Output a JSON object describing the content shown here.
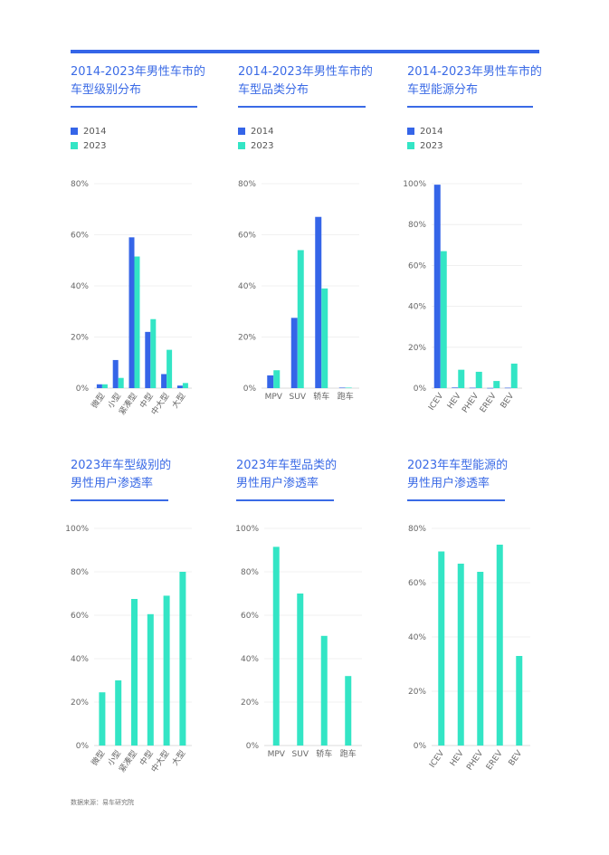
{
  "source": "数据来源：易车研究院",
  "colors": {
    "y2014": "#3565e8",
    "y2023": "#33e5c5",
    "accent": "#3a6ae6"
  },
  "panels": [
    {
      "title1": "2014-2023年男性车市的",
      "title2": "车型级别分布",
      "legend": [
        "2014",
        "2023"
      ]
    },
    {
      "title1": "2014-2023年男性车市的",
      "title2": "车型品类分布",
      "legend": [
        "2014",
        "2023"
      ]
    },
    {
      "title1": "2014-2023年男性车市的",
      "title2": "车型能源分布",
      "legend": [
        "2014",
        "2023"
      ]
    },
    {
      "title1": "2023年车型级别的",
      "title2": "男性用户渗透率"
    },
    {
      "title1": "2023年车型品类的",
      "title2": "男性用户渗透率"
    },
    {
      "title1": "2023年车型能源的",
      "title2": "男性用户渗透率"
    }
  ],
  "chart_data": [
    {
      "type": "bar",
      "title": "2014-2023年男性车市的车型级别分布",
      "categories": [
        "微型",
        "小型",
        "紧凑型",
        "中型",
        "中大型",
        "大型"
      ],
      "series": [
        {
          "name": "2014",
          "values": [
            1.5,
            11,
            59,
            22,
            5.5,
            1
          ]
        },
        {
          "name": "2023",
          "values": [
            1.5,
            4,
            51.5,
            27,
            15,
            2
          ]
        }
      ],
      "ylim": [
        0,
        80
      ],
      "yticks": [
        "0%",
        "20%",
        "40%",
        "60%",
        "80%"
      ],
      "legend": "top-left",
      "grid": true
    },
    {
      "type": "bar",
      "title": "2014-2023年男性车市的车型品类分布",
      "categories": [
        "MPV",
        "SUV",
        "轿车",
        "跑车"
      ],
      "series": [
        {
          "name": "2014",
          "values": [
            5,
            27.5,
            67,
            0.2
          ]
        },
        {
          "name": "2023",
          "values": [
            7,
            54,
            39,
            0.2
          ]
        }
      ],
      "ylim": [
        0,
        80
      ],
      "yticks": [
        "0%",
        "20%",
        "40%",
        "60%",
        "80%"
      ],
      "legend": "top-left",
      "grid": true
    },
    {
      "type": "bar",
      "title": "2014-2023年男性车市的车型能源分布",
      "categories": [
        "ICEV",
        "HEV",
        "PHEV",
        "EREV",
        "BEV"
      ],
      "series": [
        {
          "name": "2014",
          "values": [
            99.5,
            0.3,
            0.2,
            0.1,
            0.2
          ]
        },
        {
          "name": "2023",
          "values": [
            67,
            9,
            8,
            3.5,
            12
          ]
        }
      ],
      "ylim": [
        0,
        100
      ],
      "yticks": [
        "0%",
        "20%",
        "40%",
        "60%",
        "80%",
        "100%"
      ],
      "legend": "top-left",
      "grid": true
    },
    {
      "type": "bar",
      "title": "2023年车型级别的男性用户渗透率",
      "categories": [
        "微型",
        "小型",
        "紧凑型",
        "中型",
        "中大型",
        "大型"
      ],
      "series": [
        {
          "name": "2023",
          "values": [
            24.5,
            30,
            67.5,
            60.5,
            69,
            80
          ]
        }
      ],
      "ylim": [
        0,
        100
      ],
      "yticks": [
        "0%",
        "20%",
        "40%",
        "60%",
        "80%",
        "100%"
      ],
      "grid": true
    },
    {
      "type": "bar",
      "title": "2023年车型品类的男性用户渗透率",
      "categories": [
        "MPV",
        "SUV",
        "轿车",
        "跑车"
      ],
      "series": [
        {
          "name": "2023",
          "values": [
            91.5,
            70,
            50.5,
            32
          ]
        }
      ],
      "ylim": [
        0,
        100
      ],
      "yticks": [
        "0%",
        "20%",
        "40%",
        "60%",
        "80%",
        "100%"
      ],
      "grid": true
    },
    {
      "type": "bar",
      "title": "2023年车型能源的男性用户渗透率",
      "categories": [
        "ICEV",
        "HEV",
        "PHEV",
        "EREV",
        "BEV"
      ],
      "series": [
        {
          "name": "2023",
          "values": [
            71.5,
            67,
            64,
            74,
            33
          ]
        }
      ],
      "ylim": [
        0,
        80
      ],
      "yticks": [
        "0%",
        "20%",
        "40%",
        "60%",
        "80%"
      ],
      "grid": true
    }
  ]
}
